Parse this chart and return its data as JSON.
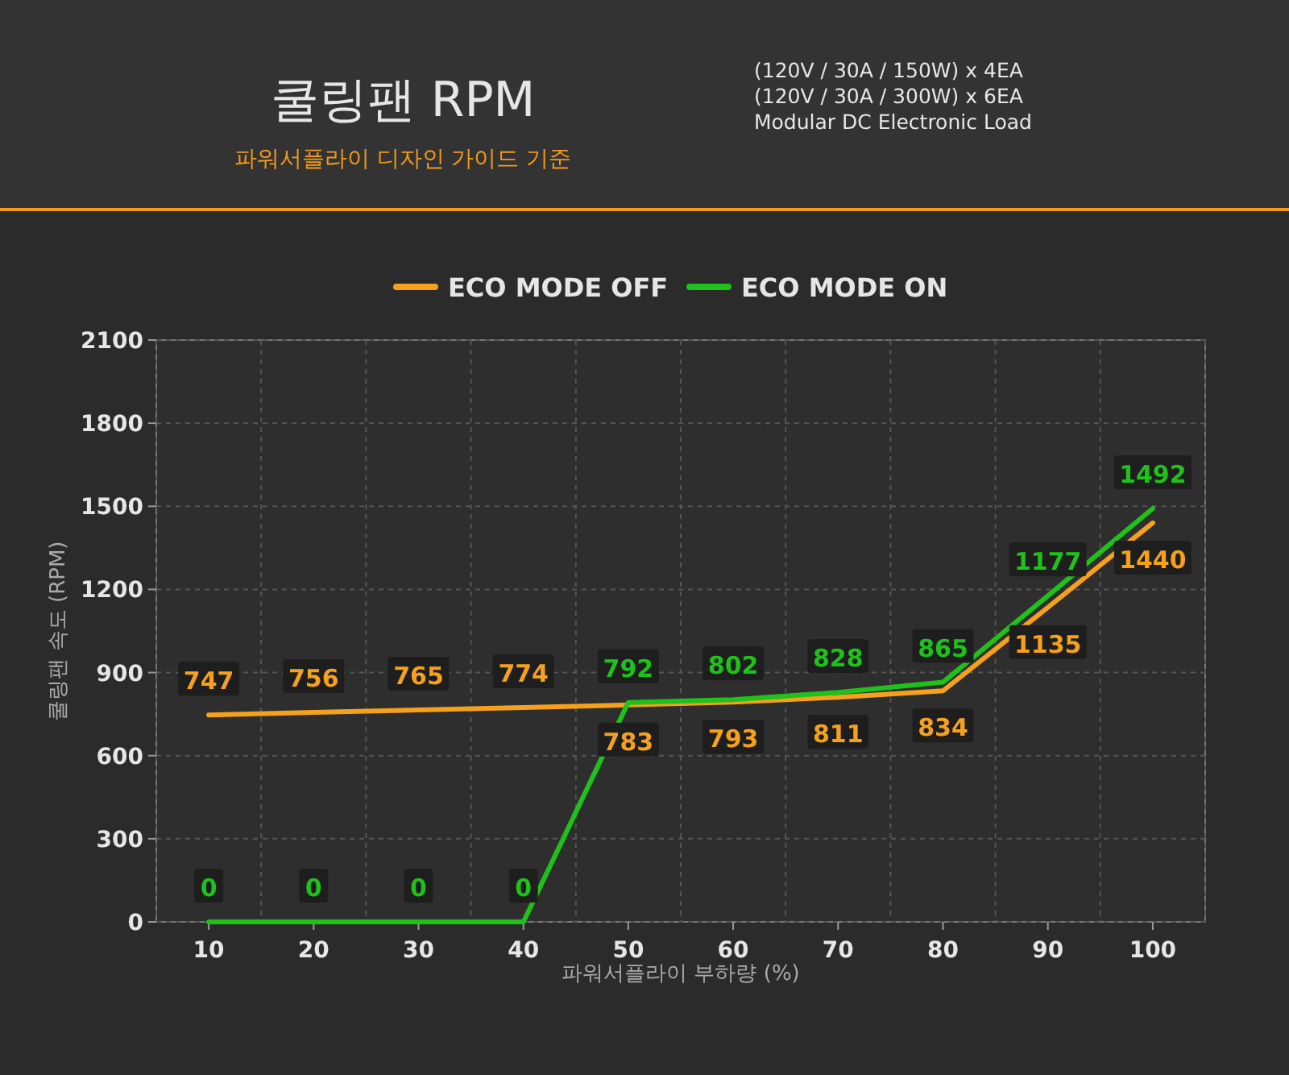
{
  "chart_data": {
    "type": "line",
    "title": "쿨링팬 RPM",
    "subtitle": "파워서플라이 디자인 가이드 기준",
    "annotations": [
      "(120V / 30A / 150W) x 4EA",
      "(120V / 30A / 300W) x 6EA",
      "Modular DC Electronic Load"
    ],
    "xlabel": "파워서플라이 부하량 (%)",
    "ylabel": "쿨링팬 속도 (RPM)",
    "categories": [
      "10",
      "20",
      "30",
      "40",
      "50",
      "60",
      "70",
      "80",
      "90",
      "100"
    ],
    "series": [
      {
        "name": "ECO MODE OFF",
        "color": "#f5a11c",
        "values": [
          747,
          756,
          765,
          774,
          783,
          793,
          811,
          834,
          1135,
          1440
        ]
      },
      {
        "name": "ECO MODE ON",
        "color": "#1fc21b",
        "values": [
          0,
          0,
          0,
          0,
          792,
          802,
          828,
          865,
          1177,
          1492
        ]
      }
    ],
    "ylim": [
      0,
      2100
    ],
    "yticks": [
      0,
      300,
      600,
      900,
      1200,
      1500,
      1800,
      2100
    ],
    "grid": true,
    "legend": "top",
    "data_labels": true,
    "marker": "none",
    "line_style": "solid"
  }
}
